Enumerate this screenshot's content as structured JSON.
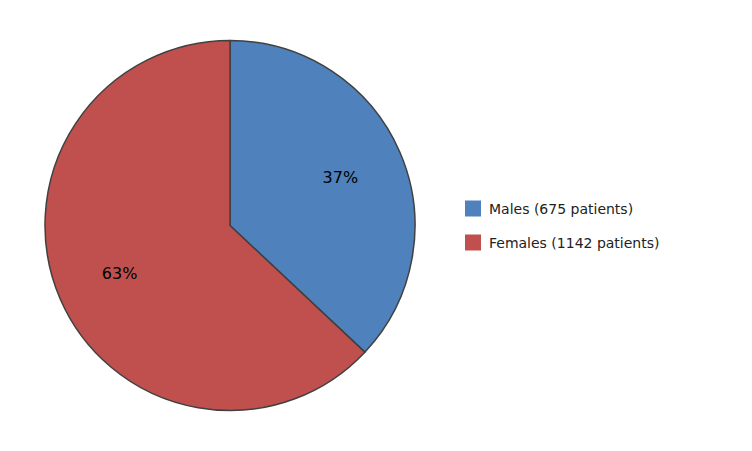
{
  "chart_data": {
    "type": "pie",
    "categories": [
      "Males (675 patients)",
      "Females (1142 patients)"
    ],
    "values": [
      37,
      63
    ],
    "value_labels": [
      "37%",
      "63%"
    ],
    "colors": [
      "#4F81BD",
      "#C0504D"
    ],
    "data_labels": true,
    "legend": "right"
  }
}
